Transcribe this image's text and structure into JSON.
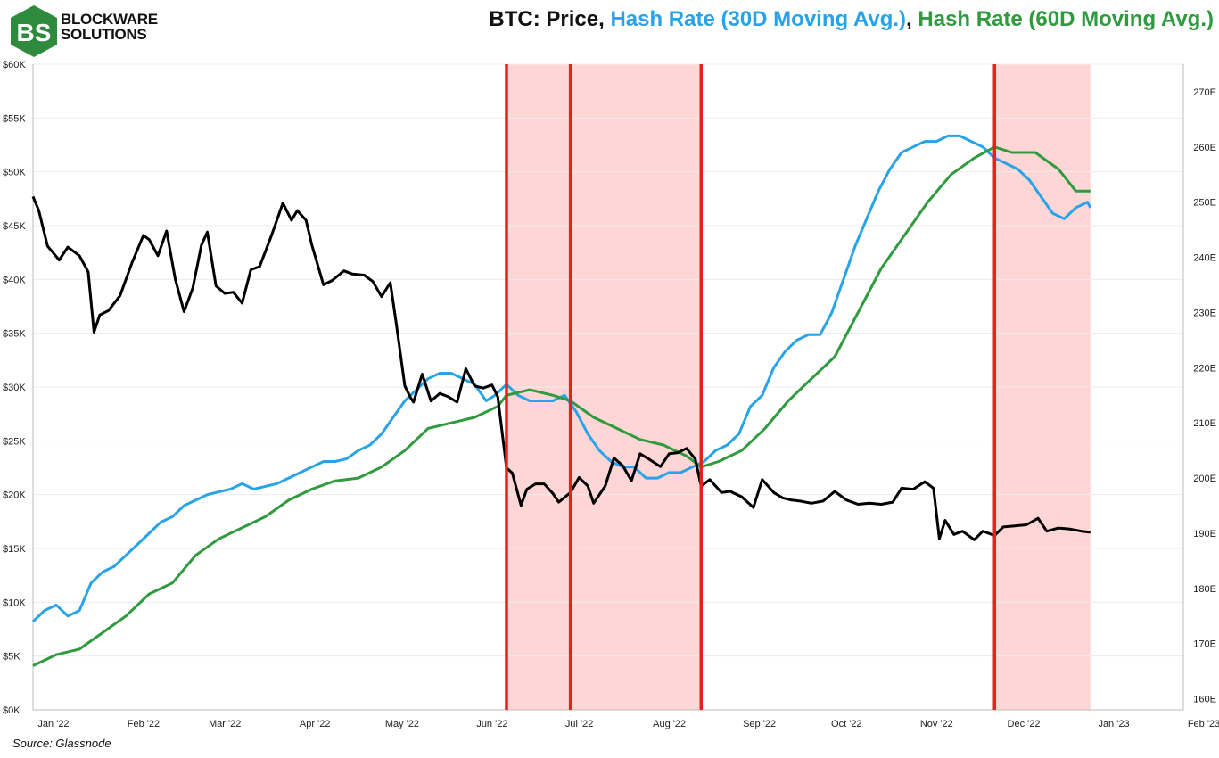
{
  "brand": {
    "line1": "BLOCKWARE",
    "line2": "SOLUTIONS"
  },
  "header": {
    "title_prefix": "BTC: Price, ",
    "title_hash30": "Hash Rate (30D Moving Avg.)",
    "title_sep": ", ",
    "title_hash60": "Hash Rate (60D Moving Avg.)"
  },
  "footer": {
    "source": "Source: Glassnode"
  },
  "colors": {
    "price": "#000000",
    "hash30": "#29a3e8",
    "hash60": "#2f9a3e",
    "shade": "#ffd6d6",
    "event": "#e8201e",
    "brand": "#2e8b3d"
  },
  "chart_data": {
    "type": "line",
    "x_ticks": [
      "Jan '22",
      "Feb '22",
      "Mar '22",
      "Apr '22",
      "May '22",
      "Jun '22",
      "Jul '22",
      "Aug '22",
      "Sep '22",
      "Oct '22",
      "Nov '22",
      "Dec '22",
      "Jan '23",
      "Feb '23"
    ],
    "x_domain": [
      "2022-01-01",
      "2023-02-01"
    ],
    "y_left_ticks": [
      "$0K",
      "$5K",
      "$10K",
      "$15K",
      "$20K",
      "$25K",
      "$30K",
      "$35K",
      "$40K",
      "$45K",
      "$50K",
      "$55K",
      "$60K"
    ],
    "y_left_range": [
      0,
      60000
    ],
    "y_right_ticks": [
      "160E",
      "170E",
      "180E",
      "190E",
      "200E",
      "210E",
      "220E",
      "230E",
      "240E",
      "250E",
      "260E",
      "270E"
    ],
    "y_right_range": [
      158,
      275
    ],
    "shaded_ranges": [
      [
        "2022-06-13",
        "2022-08-19"
      ],
      [
        "2022-11-28",
        "2022-12-31"
      ]
    ],
    "event_lines": [
      "2022-06-13",
      "2022-07-05",
      "2022-08-19",
      "2022-11-28"
    ],
    "series": [
      {
        "name": "Price",
        "axis": "left",
        "points": [
          [
            "2022-01-01",
            47700
          ],
          [
            "2022-01-03",
            46400
          ],
          [
            "2022-01-06",
            43100
          ],
          [
            "2022-01-10",
            41800
          ],
          [
            "2022-01-13",
            43000
          ],
          [
            "2022-01-17",
            42200
          ],
          [
            "2022-01-20",
            40700
          ],
          [
            "2022-01-22",
            35100
          ],
          [
            "2022-01-24",
            36700
          ],
          [
            "2022-01-27",
            37100
          ],
          [
            "2022-01-31",
            38500
          ],
          [
            "2022-02-04",
            41500
          ],
          [
            "2022-02-08",
            44100
          ],
          [
            "2022-02-10",
            43700
          ],
          [
            "2022-02-13",
            42200
          ],
          [
            "2022-02-16",
            44500
          ],
          [
            "2022-02-19",
            40000
          ],
          [
            "2022-02-22",
            37000
          ],
          [
            "2022-02-25",
            39200
          ],
          [
            "2022-02-28",
            43200
          ],
          [
            "2022-03-02",
            44400
          ],
          [
            "2022-03-05",
            39400
          ],
          [
            "2022-03-08",
            38700
          ],
          [
            "2022-03-11",
            38800
          ],
          [
            "2022-03-14",
            37800
          ],
          [
            "2022-03-17",
            40900
          ],
          [
            "2022-03-20",
            41200
          ],
          [
            "2022-03-24",
            44000
          ],
          [
            "2022-03-28",
            47100
          ],
          [
            "2022-03-31",
            45500
          ],
          [
            "2022-04-02",
            46400
          ],
          [
            "2022-04-05",
            45500
          ],
          [
            "2022-04-07",
            43200
          ],
          [
            "2022-04-11",
            39500
          ],
          [
            "2022-04-14",
            39900
          ],
          [
            "2022-04-18",
            40800
          ],
          [
            "2022-04-21",
            40500
          ],
          [
            "2022-04-25",
            40400
          ],
          [
            "2022-04-28",
            39800
          ],
          [
            "2022-05-01",
            38400
          ],
          [
            "2022-05-04",
            39700
          ],
          [
            "2022-05-06",
            36000
          ],
          [
            "2022-05-09",
            30100
          ],
          [
            "2022-05-11",
            29000
          ],
          [
            "2022-05-12",
            28600
          ],
          [
            "2022-05-15",
            31200
          ],
          [
            "2022-05-18",
            28700
          ],
          [
            "2022-05-21",
            29400
          ],
          [
            "2022-05-24",
            29100
          ],
          [
            "2022-05-27",
            28600
          ],
          [
            "2022-05-30",
            31700
          ],
          [
            "2022-06-02",
            30100
          ],
          [
            "2022-06-05",
            29900
          ],
          [
            "2022-06-08",
            30200
          ],
          [
            "2022-06-10",
            29100
          ],
          [
            "2022-06-13",
            22500
          ],
          [
            "2022-06-15",
            22000
          ],
          [
            "2022-06-18",
            19000
          ],
          [
            "2022-06-20",
            20500
          ],
          [
            "2022-06-23",
            21000
          ],
          [
            "2022-06-26",
            21000
          ],
          [
            "2022-06-29",
            20100
          ],
          [
            "2022-07-01",
            19300
          ],
          [
            "2022-07-05",
            20200
          ],
          [
            "2022-07-08",
            21600
          ],
          [
            "2022-07-11",
            20800
          ],
          [
            "2022-07-13",
            19200
          ],
          [
            "2022-07-17",
            20800
          ],
          [
            "2022-07-20",
            23400
          ],
          [
            "2022-07-23",
            22700
          ],
          [
            "2022-07-26",
            21300
          ],
          [
            "2022-07-29",
            23800
          ],
          [
            "2022-08-01",
            23300
          ],
          [
            "2022-08-05",
            22600
          ],
          [
            "2022-08-08",
            23800
          ],
          [
            "2022-08-11",
            23900
          ],
          [
            "2022-08-14",
            24300
          ],
          [
            "2022-08-17",
            23300
          ],
          [
            "2022-08-19",
            20800
          ],
          [
            "2022-08-22",
            21400
          ],
          [
            "2022-08-26",
            20200
          ],
          [
            "2022-08-29",
            20300
          ],
          [
            "2022-09-02",
            19800
          ],
          [
            "2022-09-06",
            18800
          ],
          [
            "2022-09-09",
            21400
          ],
          [
            "2022-09-13",
            20200
          ],
          [
            "2022-09-16",
            19700
          ],
          [
            "2022-09-19",
            19500
          ],
          [
            "2022-09-22",
            19400
          ],
          [
            "2022-09-26",
            19200
          ],
          [
            "2022-09-30",
            19400
          ],
          [
            "2022-10-04",
            20300
          ],
          [
            "2022-10-08",
            19500
          ],
          [
            "2022-10-12",
            19100
          ],
          [
            "2022-10-16",
            19200
          ],
          [
            "2022-10-20",
            19100
          ],
          [
            "2022-10-24",
            19300
          ],
          [
            "2022-10-27",
            20600
          ],
          [
            "2022-10-31",
            20500
          ],
          [
            "2022-11-04",
            21200
          ],
          [
            "2022-11-07",
            20600
          ],
          [
            "2022-11-09",
            15900
          ],
          [
            "2022-11-11",
            17600
          ],
          [
            "2022-11-14",
            16300
          ],
          [
            "2022-11-17",
            16600
          ],
          [
            "2022-11-21",
            15800
          ],
          [
            "2022-11-24",
            16600
          ],
          [
            "2022-11-28",
            16200
          ],
          [
            "2022-12-01",
            17000
          ],
          [
            "2022-12-05",
            17100
          ],
          [
            "2022-12-09",
            17200
          ],
          [
            "2022-12-13",
            17800
          ],
          [
            "2022-12-16",
            16600
          ],
          [
            "2022-12-20",
            16900
          ],
          [
            "2022-12-24",
            16800
          ],
          [
            "2022-12-28",
            16600
          ],
          [
            "2022-12-31",
            16500
          ]
        ]
      },
      {
        "name": "Hash Rate (30D Moving Avg.)",
        "axis": "right",
        "points": [
          [
            "2022-01-01",
            174
          ],
          [
            "2022-01-05",
            176
          ],
          [
            "2022-01-09",
            177
          ],
          [
            "2022-01-13",
            175
          ],
          [
            "2022-01-17",
            176
          ],
          [
            "2022-01-21",
            181
          ],
          [
            "2022-01-25",
            183
          ],
          [
            "2022-01-29",
            184
          ],
          [
            "2022-02-02",
            186
          ],
          [
            "2022-02-06",
            188
          ],
          [
            "2022-02-10",
            190
          ],
          [
            "2022-02-14",
            192
          ],
          [
            "2022-02-18",
            193
          ],
          [
            "2022-02-22",
            195
          ],
          [
            "2022-02-26",
            196
          ],
          [
            "2022-03-02",
            197
          ],
          [
            "2022-03-06",
            197.5
          ],
          [
            "2022-03-10",
            198
          ],
          [
            "2022-03-14",
            199
          ],
          [
            "2022-03-18",
            198
          ],
          [
            "2022-03-22",
            198.5
          ],
          [
            "2022-03-26",
            199
          ],
          [
            "2022-03-30",
            200
          ],
          [
            "2022-04-03",
            201
          ],
          [
            "2022-04-07",
            202
          ],
          [
            "2022-04-11",
            203
          ],
          [
            "2022-04-15",
            203
          ],
          [
            "2022-04-19",
            203.5
          ],
          [
            "2022-04-23",
            205
          ],
          [
            "2022-04-27",
            206
          ],
          [
            "2022-05-01",
            208
          ],
          [
            "2022-05-05",
            211
          ],
          [
            "2022-05-09",
            214
          ],
          [
            "2022-05-13",
            216
          ],
          [
            "2022-05-17",
            218
          ],
          [
            "2022-05-21",
            219
          ],
          [
            "2022-05-25",
            219
          ],
          [
            "2022-05-29",
            218
          ],
          [
            "2022-06-02",
            217
          ],
          [
            "2022-06-06",
            214
          ],
          [
            "2022-06-09",
            215
          ],
          [
            "2022-06-13",
            217
          ],
          [
            "2022-06-17",
            215
          ],
          [
            "2022-06-21",
            214
          ],
          [
            "2022-06-25",
            214
          ],
          [
            "2022-06-29",
            214
          ],
          [
            "2022-07-03",
            215
          ],
          [
            "2022-07-07",
            212
          ],
          [
            "2022-07-11",
            208
          ],
          [
            "2022-07-15",
            205
          ],
          [
            "2022-07-19",
            203
          ],
          [
            "2022-07-23",
            202
          ],
          [
            "2022-07-27",
            202
          ],
          [
            "2022-07-31",
            200
          ],
          [
            "2022-08-04",
            200
          ],
          [
            "2022-08-08",
            201
          ],
          [
            "2022-08-12",
            201
          ],
          [
            "2022-08-16",
            202
          ],
          [
            "2022-08-20",
            203
          ],
          [
            "2022-08-24",
            205
          ],
          [
            "2022-08-28",
            206
          ],
          [
            "2022-09-01",
            208
          ],
          [
            "2022-09-05",
            213
          ],
          [
            "2022-09-09",
            215
          ],
          [
            "2022-09-13",
            220
          ],
          [
            "2022-09-17",
            223
          ],
          [
            "2022-09-21",
            225
          ],
          [
            "2022-09-25",
            226
          ],
          [
            "2022-09-29",
            226
          ],
          [
            "2022-10-03",
            230
          ],
          [
            "2022-10-07",
            236
          ],
          [
            "2022-10-11",
            242
          ],
          [
            "2022-10-15",
            247
          ],
          [
            "2022-10-19",
            252
          ],
          [
            "2022-10-23",
            256
          ],
          [
            "2022-10-27",
            259
          ],
          [
            "2022-10-31",
            260
          ],
          [
            "2022-11-04",
            261
          ],
          [
            "2022-11-08",
            261
          ],
          [
            "2022-11-12",
            262
          ],
          [
            "2022-11-16",
            262
          ],
          [
            "2022-11-20",
            261
          ],
          [
            "2022-11-24",
            260
          ],
          [
            "2022-11-28",
            258
          ],
          [
            "2022-12-02",
            257
          ],
          [
            "2022-12-06",
            256
          ],
          [
            "2022-12-10",
            254
          ],
          [
            "2022-12-14",
            251
          ],
          [
            "2022-12-18",
            248
          ],
          [
            "2022-12-22",
            247
          ],
          [
            "2022-12-26",
            249
          ],
          [
            "2022-12-30",
            250
          ],
          [
            "2022-12-31",
            249
          ]
        ]
      },
      {
        "name": "Hash Rate (60D Moving Avg.)",
        "axis": "right",
        "points": [
          [
            "2022-01-01",
            166
          ],
          [
            "2022-01-09",
            168
          ],
          [
            "2022-01-17",
            169
          ],
          [
            "2022-01-25",
            172
          ],
          [
            "2022-02-02",
            175
          ],
          [
            "2022-02-10",
            179
          ],
          [
            "2022-02-18",
            181
          ],
          [
            "2022-02-26",
            186
          ],
          [
            "2022-03-06",
            189
          ],
          [
            "2022-03-14",
            191
          ],
          [
            "2022-03-22",
            193
          ],
          [
            "2022-03-30",
            196
          ],
          [
            "2022-04-07",
            198
          ],
          [
            "2022-04-15",
            199.5
          ],
          [
            "2022-04-23",
            200
          ],
          [
            "2022-05-01",
            202
          ],
          [
            "2022-05-09",
            205
          ],
          [
            "2022-05-17",
            209
          ],
          [
            "2022-05-25",
            210
          ],
          [
            "2022-06-02",
            211
          ],
          [
            "2022-06-10",
            213
          ],
          [
            "2022-06-13",
            215
          ],
          [
            "2022-06-21",
            216
          ],
          [
            "2022-06-29",
            215
          ],
          [
            "2022-07-05",
            214
          ],
          [
            "2022-07-13",
            211
          ],
          [
            "2022-07-21",
            209
          ],
          [
            "2022-07-29",
            207
          ],
          [
            "2022-08-06",
            206
          ],
          [
            "2022-08-14",
            204
          ],
          [
            "2022-08-19",
            202
          ],
          [
            "2022-08-25",
            203
          ],
          [
            "2022-09-02",
            205
          ],
          [
            "2022-09-10",
            209
          ],
          [
            "2022-09-18",
            214
          ],
          [
            "2022-09-26",
            218
          ],
          [
            "2022-10-04",
            222
          ],
          [
            "2022-10-12",
            230
          ],
          [
            "2022-10-20",
            238
          ],
          [
            "2022-10-28",
            244
          ],
          [
            "2022-11-05",
            250
          ],
          [
            "2022-11-13",
            255
          ],
          [
            "2022-11-21",
            258
          ],
          [
            "2022-11-28",
            260
          ],
          [
            "2022-12-04",
            259
          ],
          [
            "2022-12-12",
            259
          ],
          [
            "2022-12-20",
            256
          ],
          [
            "2022-12-26",
            252
          ],
          [
            "2022-12-31",
            252
          ]
        ]
      }
    ]
  }
}
